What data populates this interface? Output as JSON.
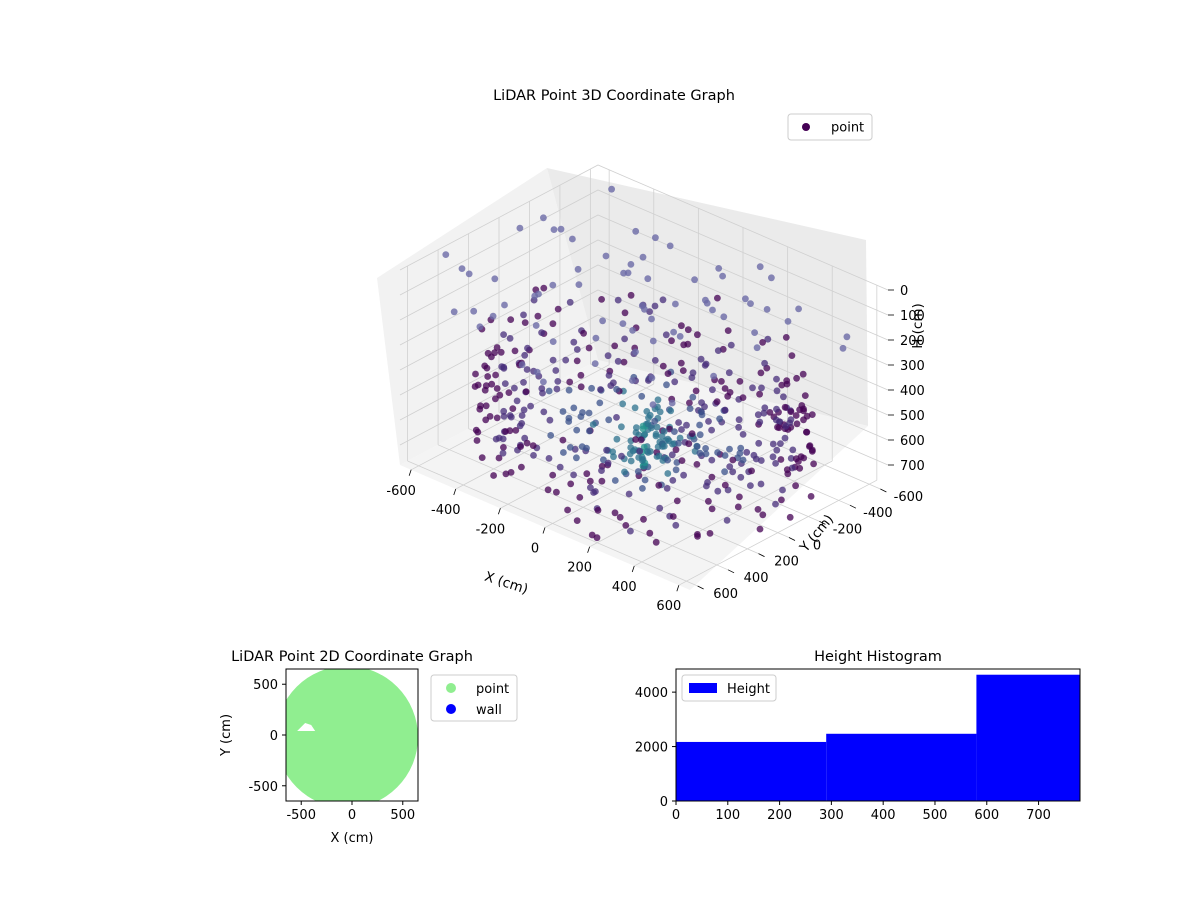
{
  "chart_data": [
    {
      "type": "scatter",
      "projection": "3d",
      "title": "LiDAR Point 3D Coordinate Graph",
      "xlabel": "X (cm)",
      "ylabel": "Y (cm)",
      "zlabel": "H (cm)",
      "xlim": [
        -650,
        650
      ],
      "ylim": [
        -650,
        650
      ],
      "zlim": [
        0,
        780
      ],
      "z_axis_inverted": true,
      "xticks": [
        -600,
        -400,
        -200,
        0,
        200,
        400,
        600
      ],
      "yticks": [
        -600,
        -400,
        -200,
        0,
        200,
        400,
        600
      ],
      "zticks": [
        0,
        100,
        200,
        300,
        400,
        500,
        600,
        700
      ],
      "grid": true,
      "legend": {
        "position": "top-right",
        "entries": [
          "point"
        ]
      },
      "colormap": "viridis",
      "series": [
        {
          "name": "point",
          "color_by": "distance",
          "notes_scale": "dense ring of points around the room perimeter plus radial scan lines toward the center",
          "x_range": [
            -650,
            650
          ],
          "y_range": [
            -650,
            650
          ],
          "z_range": [
            0,
            780
          ]
        }
      ]
    },
    {
      "type": "scatter",
      "title": "LiDAR Point 2D Coordinate Graph",
      "xlabel": "X (cm)",
      "ylabel": "Y (cm)",
      "xlim": [
        -650,
        650
      ],
      "ylim": [
        -650,
        650
      ],
      "xticks": [
        -500,
        0,
        500
      ],
      "yticks": [
        -500,
        0,
        500
      ],
      "legend": {
        "position": "outside-right",
        "entries": [
          "point",
          "wall"
        ]
      },
      "series": [
        {
          "name": "point",
          "color": "#90ee90"
        },
        {
          "name": "wall",
          "color": "#0000ff"
        }
      ]
    },
    {
      "type": "bar",
      "title": "Height Histogram",
      "xlabel": "",
      "ylabel": "",
      "xlim": [
        0,
        780
      ],
      "ylim": [
        0,
        4850
      ],
      "xticks": [
        0,
        100,
        200,
        300,
        400,
        500,
        600,
        700
      ],
      "yticks": [
        0,
        2000,
        4000
      ],
      "legend": {
        "position": "top-left",
        "entries": [
          "Height"
        ]
      },
      "bins": [
        {
          "x0": 0,
          "x1": 290,
          "value": 2170
        },
        {
          "x0": 290,
          "x1": 580,
          "value": 2470
        },
        {
          "x0": 580,
          "x1": 780,
          "value": 4640
        }
      ],
      "series": [
        {
          "name": "Height",
          "color": "#0000ff"
        }
      ]
    }
  ]
}
